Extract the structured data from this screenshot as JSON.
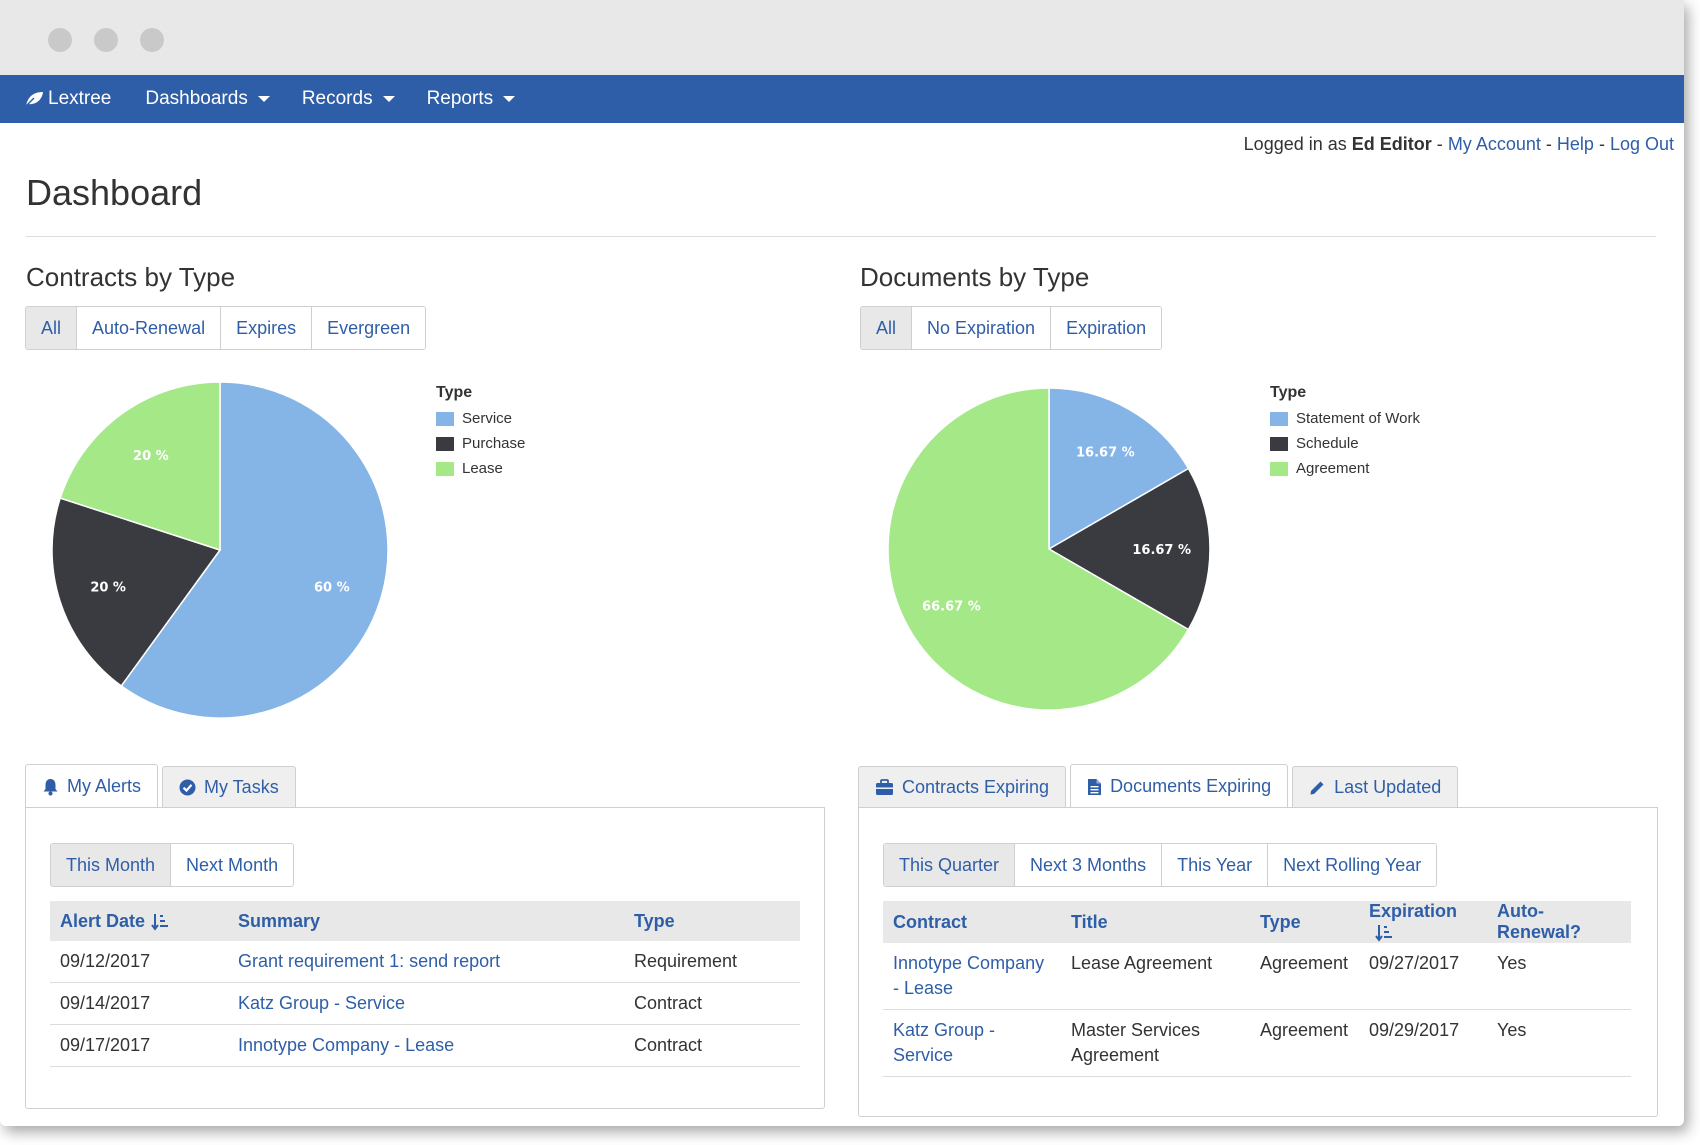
{
  "nav": {
    "brand": "Lextree",
    "items": [
      {
        "label": "Dashboards"
      },
      {
        "label": "Records"
      },
      {
        "label": "Reports"
      }
    ]
  },
  "userbar": {
    "prefix": "Logged in as",
    "user": "Ed Editor",
    "sep": "-",
    "links": [
      "My Account",
      "Help",
      "Log Out"
    ]
  },
  "page": {
    "title": "Dashboard"
  },
  "contracts": {
    "title": "Contracts by Type",
    "filters": [
      "All",
      "Auto-Renewal",
      "Expires",
      "Evergreen"
    ],
    "legend_title": "Type"
  },
  "documents": {
    "title": "Documents by Type",
    "filters": [
      "All",
      "No Expiration",
      "Expiration"
    ],
    "legend_title": "Type"
  },
  "chart_data": [
    {
      "type": "pie",
      "title": "Contracts by Type",
      "legend_title": "Type",
      "categories": [
        "Service",
        "Purchase",
        "Lease"
      ],
      "values": [
        60,
        20,
        20
      ],
      "labels": [
        "60 %",
        "20 %",
        "20 %"
      ],
      "colors": [
        "#85b4e6",
        "#3a3b40",
        "#a4e887"
      ]
    },
    {
      "type": "pie",
      "title": "Documents by Type",
      "legend_title": "Type",
      "categories": [
        "Statement of Work",
        "Schedule",
        "Agreement"
      ],
      "values": [
        16.67,
        16.67,
        66.67
      ],
      "labels": [
        "16.67 %",
        "16.67 %",
        "66.67 %"
      ],
      "colors": [
        "#85b4e6",
        "#3a3b40",
        "#a4e887"
      ]
    }
  ],
  "alerts": {
    "tabs": [
      "My Alerts",
      "My Tasks"
    ],
    "filters": [
      "This Month",
      "Next Month"
    ],
    "columns": [
      "Alert Date",
      "Summary",
      "Type"
    ],
    "rows": [
      {
        "date": "09/12/2017",
        "summary": "Grant requirement 1: send report",
        "type": "Requirement"
      },
      {
        "date": "09/14/2017",
        "summary": "Katz Group - Service",
        "type": "Contract"
      },
      {
        "date": "09/17/2017",
        "summary": "Innotype Company - Lease",
        "type": "Contract"
      }
    ]
  },
  "expiring": {
    "tabs": [
      "Contracts Expiring",
      "Documents Expiring",
      "Last Updated"
    ],
    "filters": [
      "This Quarter",
      "Next 3 Months",
      "This Year",
      "Next Rolling Year"
    ],
    "columns": [
      "Contract",
      "Title",
      "Type",
      "Expiration",
      "Auto-Renewal?"
    ],
    "rows": [
      {
        "contract_1": "Innotype Company",
        "contract_2": "- Lease",
        "title_1": "Lease Agreement",
        "title_2": "",
        "type": "Agreement",
        "expiration": "09/27/2017",
        "auto": "Yes"
      },
      {
        "contract_1": "Katz Group -",
        "contract_2": "Service",
        "title_1": "Master Services",
        "title_2": "Agreement",
        "type": "Agreement",
        "expiration": "09/29/2017",
        "auto": "Yes"
      }
    ]
  }
}
